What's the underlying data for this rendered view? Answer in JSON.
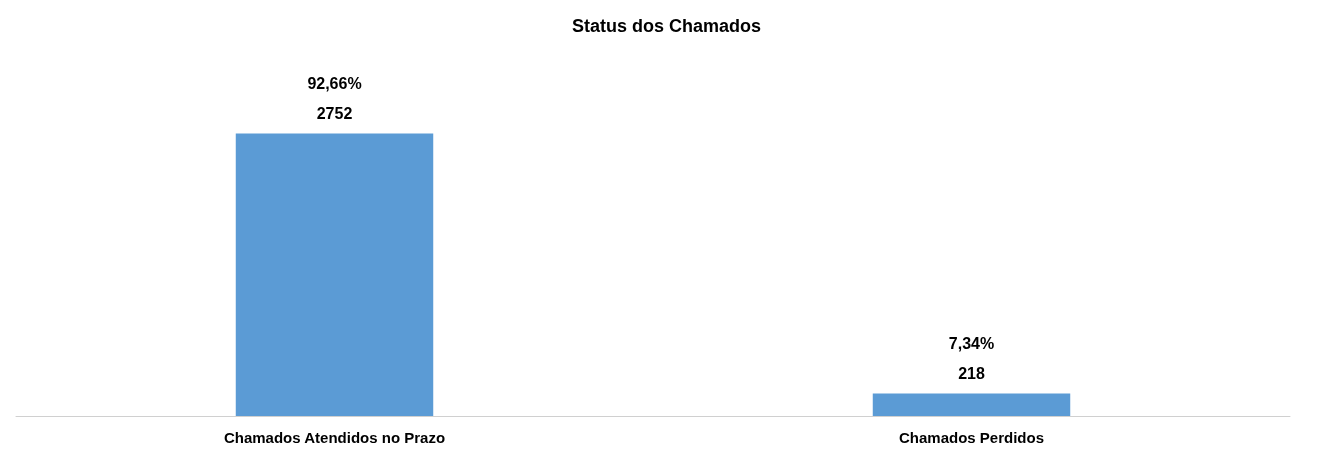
{
  "chart_data": {
    "type": "bar",
    "title": "Status dos Chamados",
    "categories": [
      "Chamados Atendidos no Prazo",
      "Chamados Perdidos"
    ],
    "values": [
      2752,
      218
    ],
    "value_labels": [
      "92,66%\n2752",
      "7,34%\n218"
    ],
    "color": "#5b9bd5"
  }
}
